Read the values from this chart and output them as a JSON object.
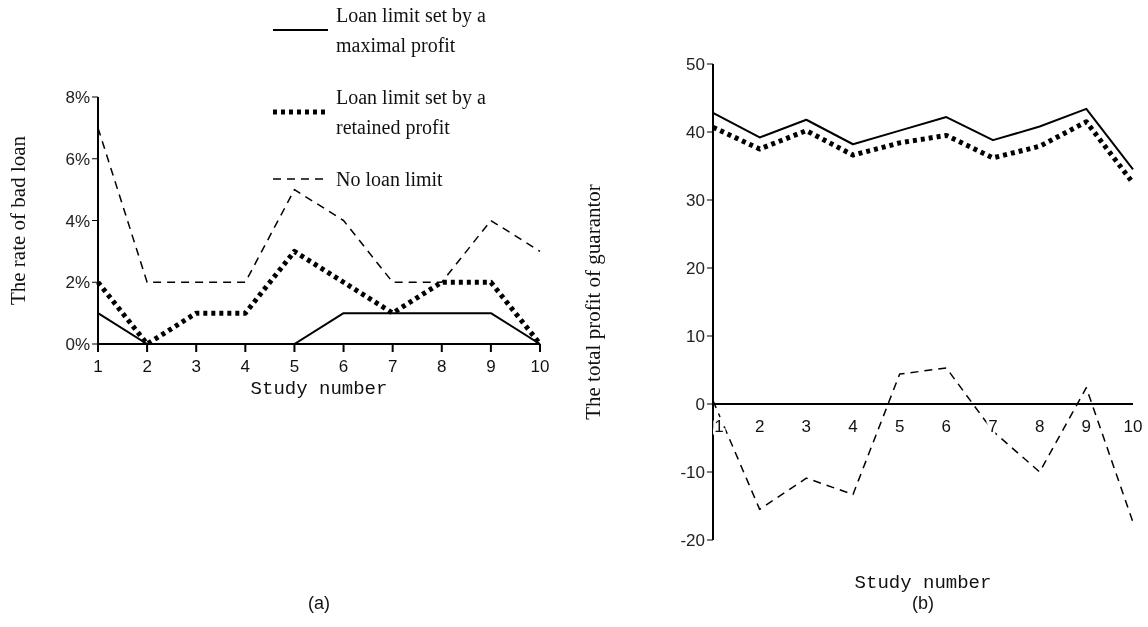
{
  "chart_data": [
    {
      "type": "line",
      "xlabel": "Study number",
      "ylabel": "The rate of bad loan",
      "annotations": [
        "(a)"
      ],
      "categories": [
        "1",
        "2",
        "3",
        "4",
        "5",
        "6",
        "7",
        "8",
        "9",
        "10"
      ],
      "ylim": [
        0,
        8
      ],
      "yticks": [
        {
          "value": 0,
          "label": "0%"
        },
        {
          "value": 2,
          "label": "2%"
        },
        {
          "value": 4,
          "label": "4%"
        },
        {
          "value": 6,
          "label": "6%"
        },
        {
          "value": 8,
          "label": "8%"
        }
      ],
      "legend": "top right",
      "marker": "none",
      "series": [
        {
          "name": "Loan limit set by a maximal profit",
          "color": "#000000",
          "line_style": "solid",
          "values": [
            1,
            0,
            0,
            0,
            0,
            1,
            1,
            1,
            1,
            0
          ]
        },
        {
          "name": "Loan limit set by a retained profit",
          "color": "#000000",
          "line_style": "dotted",
          "values": [
            2,
            0,
            1,
            1,
            3,
            2,
            1,
            2,
            2,
            0
          ]
        },
        {
          "name": "No loan limit",
          "color": "#000000",
          "line_style": "dashed",
          "values": [
            7,
            2,
            2,
            2,
            5,
            4,
            2,
            2,
            4,
            3
          ]
        }
      ]
    },
    {
      "type": "line",
      "xlabel": "Study number",
      "ylabel": "The total profit of guarantor",
      "annotations": [
        "(b)"
      ],
      "categories": [
        "1",
        "2",
        "3",
        "4",
        "5",
        "6",
        "7",
        "8",
        "9",
        "10"
      ],
      "ylim": [
        -20,
        50
      ],
      "yticks": [
        -20,
        -10,
        0,
        10,
        20,
        30,
        40,
        50
      ],
      "marker": "none",
      "series": [
        {
          "color": "#000000",
          "line_style": "solid",
          "values": [
            42.8,
            39.2,
            41.8,
            38.2,
            40.2,
            42.2,
            38.8,
            40.8,
            43.4,
            34.5
          ]
        },
        {
          "color": "#000000",
          "line_style": "dotted",
          "values": [
            40.7,
            37.5,
            40.2,
            36.6,
            38.4,
            39.5,
            36.2,
            37.9,
            41.5,
            32.5
          ]
        },
        {
          "color": "#000000",
          "line_style": "dashed",
          "values": [
            0.5,
            -15.5,
            -10.9,
            -13.3,
            4.4,
            5.3,
            -4,
            -10,
            2.4,
            -17.4
          ]
        }
      ]
    }
  ]
}
